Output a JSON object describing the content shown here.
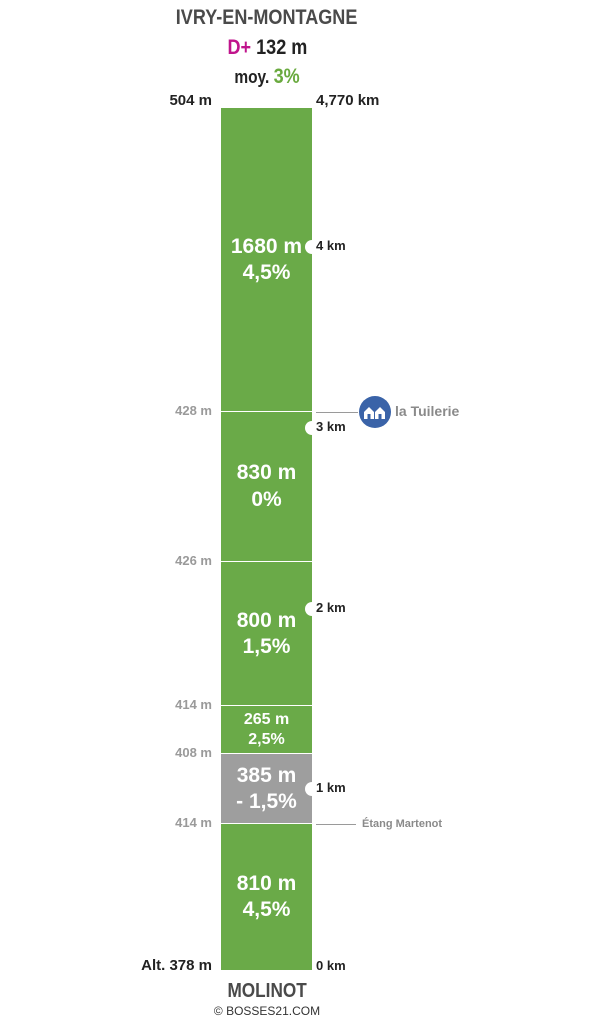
{
  "header": {
    "summit_name": "IVRY-EN-MONTAGNE",
    "gain_prefix": "D+",
    "gain_value": "132 m",
    "avg_prefix": "moy.",
    "avg_value": "3%"
  },
  "axis": {
    "top_altitude": "504 m",
    "total_distance": "4,770 km",
    "base_altitude": "Alt. 378 m",
    "base_distance": "0 km",
    "km_marks": [
      {
        "label": "4 km",
        "km": 4
      },
      {
        "label": "3 km",
        "km": 3
      },
      {
        "label": "2 km",
        "km": 2
      },
      {
        "label": "1 km",
        "km": 1
      }
    ]
  },
  "segments": [
    {
      "length": "1680 m",
      "grade": "4,5%",
      "length_m": 1680,
      "color": "#6aaa48"
    },
    {
      "length": "830 m",
      "grade": "0%",
      "length_m": 830,
      "color": "#6aaa48"
    },
    {
      "length": "800 m",
      "grade": "1,5%",
      "length_m": 800,
      "color": "#6aaa48"
    },
    {
      "length": "265 m",
      "grade": "2,5%",
      "length_m": 265,
      "color": "#6aaa48"
    },
    {
      "length": "385 m",
      "grade": "- 1,5%",
      "length_m": 385,
      "color": "#9e9e9e"
    },
    {
      "length": "810 m",
      "grade": "4,5%",
      "length_m": 810,
      "color": "#6aaa48"
    }
  ],
  "boundary_altitudes": [
    "428 m",
    "426 m",
    "414 m",
    "408 m",
    "414 m"
  ],
  "pois": [
    {
      "name": "la Tuilerie",
      "boundary_index": 0,
      "icon": "house-icon"
    },
    {
      "name": "Étang Martenot",
      "boundary_index": 4,
      "icon": ""
    }
  ],
  "footer": {
    "start_name": "MOLINOT",
    "copyright": "© BOSSES21.COM"
  }
}
